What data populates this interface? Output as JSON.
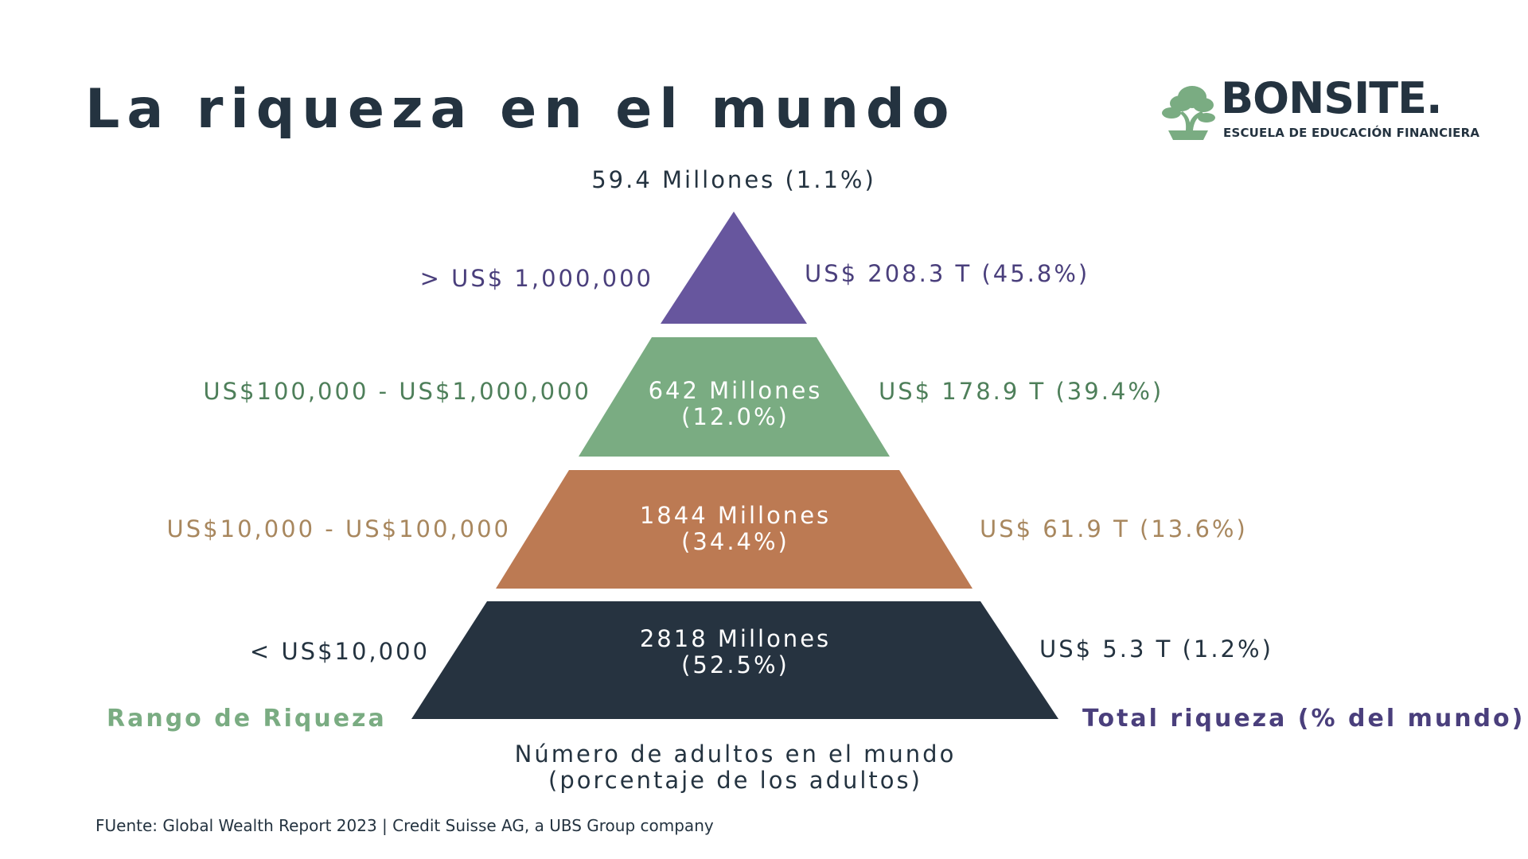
{
  "title": "La riqueza en el mundo",
  "logo": {
    "word": "BONSITE.",
    "tagline": "ESCUELA DE EDUCACIÓN FINANCIERA",
    "icon": "bonsai-tree-icon"
  },
  "pyramid": {
    "top_label": "59.4 Millones (1.1%)",
    "tiers": [
      {
        "range": "> US$ 1,000,000",
        "adults": "",
        "adults_pct": "",
        "wealth": "US$ 208.3 T (45.8%)",
        "color": "#67569e",
        "text_color": "#4a3f7c"
      },
      {
        "range": "US$100,000 - US$1,000,000",
        "adults": "642 Millones",
        "adults_pct": "(12.0%)",
        "wealth": "US$ 178.9 T (39.4%)",
        "color": "#7aac82",
        "text_color": "#4e7f5a"
      },
      {
        "range": "US$10,000 - US$100,000",
        "adults": "1844 Millones",
        "adults_pct": "(34.4%)",
        "wealth": "US$ 61.9 T (13.6%)",
        "color": "#bc7a53",
        "text_color": "#a8875e"
      },
      {
        "range": "< US$10,000",
        "adults": "2818 Millones",
        "adults_pct": "(52.5%)",
        "wealth": "US$ 5.3 T (1.2%)",
        "color": "#263340",
        "text_color": "#243340"
      }
    ]
  },
  "legend": {
    "left": "Rango de Riqueza",
    "left_color": "#7aac82",
    "right": "Total riqueza (% del mundo)",
    "right_color": "#4a3f7c",
    "bottom_line1": "Número de adultos en el mundo",
    "bottom_line2": "(porcentaje de los adultos)"
  },
  "source": "FUente: Global Wealth Report 2023 | Credit Suisse AG, a UBS Group company"
}
